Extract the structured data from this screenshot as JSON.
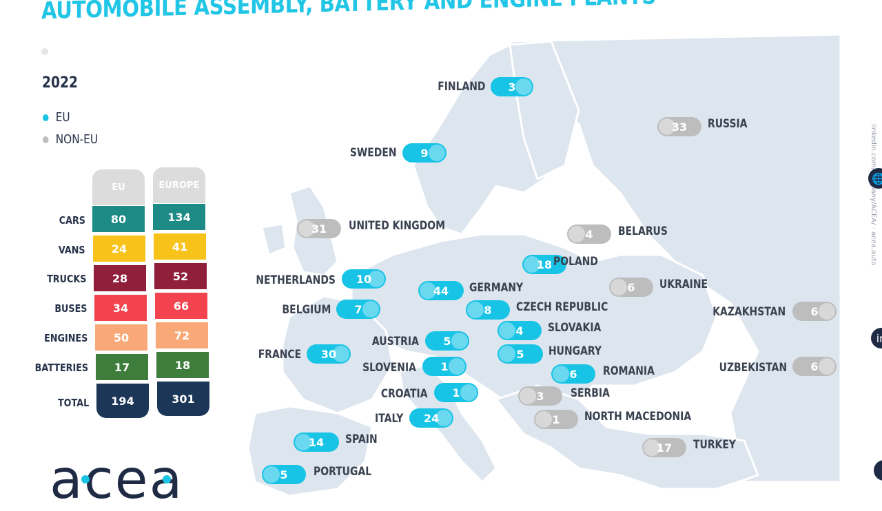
{
  "title": "AUTOMOBILE ASSEMBLY, BATTERY AND ENGINE PLANTS",
  "year": "2022",
  "legend": [
    {
      "label": "EU",
      "color": "#17c4e6"
    },
    {
      "label": "NON-EU",
      "color": "#bdbdbd"
    }
  ],
  "table": {
    "headers": [
      "EU",
      "EUROPE"
    ],
    "rows": [
      {
        "label": "CARS",
        "eu": "80",
        "europe": "134",
        "color": "#1e8a86"
      },
      {
        "label": "VANS",
        "eu": "24",
        "europe": "41",
        "color": "#f7c31a"
      },
      {
        "label": "TRUCKS",
        "eu": "28",
        "europe": "52",
        "color": "#8f1f3a"
      },
      {
        "label": "BUSES",
        "eu": "34",
        "europe": "66",
        "color": "#f2434f"
      },
      {
        "label": "ENGINES",
        "eu": "50",
        "europe": "72",
        "color": "#f8a977"
      },
      {
        "label": "BATTERIES",
        "eu": "17",
        "europe": "18",
        "color": "#3f7d3d"
      },
      {
        "label": "TOTAL",
        "eu": "194",
        "europe": "301",
        "color": "#1c3658"
      }
    ]
  },
  "countries": [
    {
      "name": "FINLAND",
      "value": "3",
      "group": "eu"
    },
    {
      "name": "SWEDEN",
      "value": "9",
      "group": "eu"
    },
    {
      "name": "RUSSIA",
      "value": "33",
      "group": "non-eu"
    },
    {
      "name": "UNITED KINGDOM",
      "value": "31",
      "group": "non-eu"
    },
    {
      "name": "BELARUS",
      "value": "4",
      "group": "non-eu"
    },
    {
      "name": "POLAND",
      "value": "18",
      "group": "eu"
    },
    {
      "name": "NETHERLANDS",
      "value": "10",
      "group": "eu"
    },
    {
      "name": "GERMANY",
      "value": "44",
      "group": "eu"
    },
    {
      "name": "UKRAINE",
      "value": "6",
      "group": "non-eu"
    },
    {
      "name": "BELGIUM",
      "value": "7",
      "group": "eu"
    },
    {
      "name": "CZECH REPUBLIC",
      "value": "8",
      "group": "eu"
    },
    {
      "name": "KAZAKHSTAN",
      "value": "6",
      "group": "non-eu"
    },
    {
      "name": "SLOVAKIA",
      "value": "4",
      "group": "eu"
    },
    {
      "name": "AUSTRIA",
      "value": "5",
      "group": "eu"
    },
    {
      "name": "FRANCE",
      "value": "30",
      "group": "eu"
    },
    {
      "name": "HUNGARY",
      "value": "5",
      "group": "eu"
    },
    {
      "name": "SLOVENIA",
      "value": "1",
      "group": "eu"
    },
    {
      "name": "UZBEKISTAN",
      "value": "6",
      "group": "non-eu"
    },
    {
      "name": "ROMANIA",
      "value": "6",
      "group": "eu"
    },
    {
      "name": "CROATIA",
      "value": "1",
      "group": "eu"
    },
    {
      "name": "SERBIA",
      "value": "3",
      "group": "non-eu"
    },
    {
      "name": "ITALY",
      "value": "24",
      "group": "eu"
    },
    {
      "name": "NORTH MACEDONIA",
      "value": "1",
      "group": "non-eu"
    },
    {
      "name": "SPAIN",
      "value": "14",
      "group": "eu"
    },
    {
      "name": "TURKEY",
      "value": "17",
      "group": "non-eu"
    },
    {
      "name": "PORTUGAL",
      "value": "5",
      "group": "eu"
    }
  ],
  "logo": "acea",
  "side_text": "linkedin.com/company/ACEA/ · acea.auto"
}
